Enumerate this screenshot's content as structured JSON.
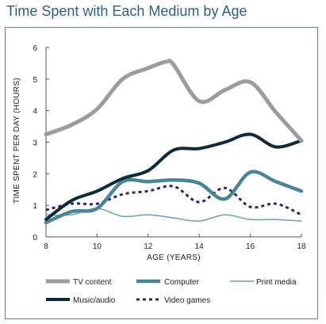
{
  "chart_data": {
    "type": "line",
    "title": "Time Spent with Each Medium by Age",
    "xlabel": "AGE (YEARS)",
    "ylabel": "TIME SPENT PER DAY (HOURS)",
    "xlim": [
      8,
      18
    ],
    "ylim": [
      0,
      6
    ],
    "xticks": [
      8,
      10,
      12,
      14,
      16,
      18
    ],
    "yticks": [
      0,
      1,
      2,
      3,
      4,
      5,
      6
    ],
    "grid": false,
    "legend_position": "bottom",
    "series": [
      {
        "name": "TV content",
        "color": "#9c9c9c",
        "width": 5,
        "dash": "",
        "points": [
          [
            8,
            3.25
          ],
          [
            9,
            3.55
          ],
          [
            10,
            4.05
          ],
          [
            11,
            5.0
          ],
          [
            12,
            5.35
          ],
          [
            12.7,
            5.55
          ],
          [
            13,
            5.45
          ],
          [
            14,
            4.3
          ],
          [
            15,
            4.65
          ],
          [
            16,
            4.9
          ],
          [
            17,
            3.95
          ],
          [
            18,
            3.05
          ]
        ]
      },
      {
        "name": "Music/audio",
        "color": "#0e2a38",
        "width": 4,
        "dash": "",
        "points": [
          [
            8,
            0.55
          ],
          [
            9,
            1.15
          ],
          [
            10,
            1.45
          ],
          [
            11,
            1.85
          ],
          [
            12,
            2.1
          ],
          [
            13,
            2.75
          ],
          [
            14,
            2.8
          ],
          [
            15,
            3.0
          ],
          [
            16,
            3.25
          ],
          [
            17,
            2.85
          ],
          [
            18,
            3.05
          ]
        ]
      },
      {
        "name": "Computer",
        "color": "#4a8597",
        "width": 4.5,
        "dash": "",
        "points": [
          [
            8,
            0.45
          ],
          [
            9,
            0.8
          ],
          [
            10,
            0.9
          ],
          [
            11,
            1.75
          ],
          [
            12,
            1.75
          ],
          [
            13,
            1.8
          ],
          [
            14,
            1.7
          ],
          [
            15,
            1.2
          ],
          [
            16,
            2.05
          ],
          [
            17,
            1.75
          ],
          [
            18,
            1.45
          ]
        ]
      },
      {
        "name": "Video games",
        "color": "#2c2960",
        "width": 3,
        "dash": "4,4",
        "points": [
          [
            8,
            0.85
          ],
          [
            9,
            1.05
          ],
          [
            10,
            1.05
          ],
          [
            11,
            1.35
          ],
          [
            12,
            1.45
          ],
          [
            13,
            1.6
          ],
          [
            14,
            1.1
          ],
          [
            15,
            1.55
          ],
          [
            16,
            0.95
          ],
          [
            17,
            1.05
          ],
          [
            18,
            0.7
          ]
        ]
      },
      {
        "name": "Print media",
        "color": "#6aa0b4",
        "width": 1.5,
        "dash": "",
        "points": [
          [
            8,
            0.7
          ],
          [
            9,
            0.7
          ],
          [
            10,
            0.9
          ],
          [
            11,
            0.65
          ],
          [
            12,
            0.7
          ],
          [
            13,
            0.6
          ],
          [
            14,
            0.5
          ],
          [
            15,
            0.7
          ],
          [
            16,
            0.55
          ],
          [
            17,
            0.55
          ],
          [
            18,
            0.5
          ]
        ]
      }
    ],
    "legend": [
      {
        "series": 0,
        "label": "TV content"
      },
      {
        "series": 2,
        "label": "Computer"
      },
      {
        "series": 4,
        "label": "Print media"
      },
      {
        "series": 1,
        "label": "Music/audio"
      },
      {
        "series": 3,
        "label": "Video games"
      }
    ]
  }
}
